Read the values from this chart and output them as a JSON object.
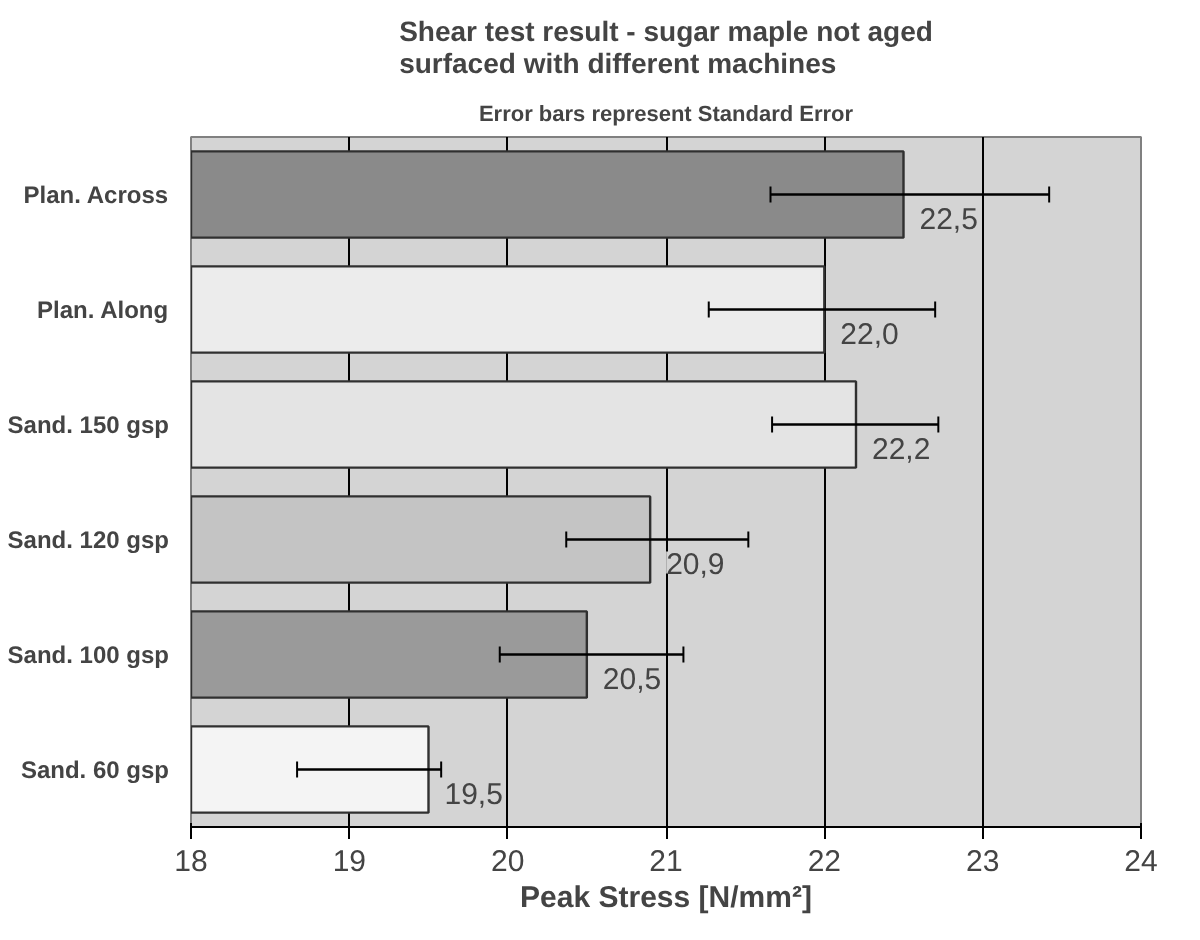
{
  "chart_data": {
    "type": "bar",
    "orientation": "horizontal",
    "title": "Shear test result - sugar maple not aged\nsurfaced with different machines",
    "subtitle": "Error bars represent Standard Error",
    "xlabel": "Peak Stress [N/mm²]",
    "categories": [
      "Plan. Across",
      "Plan. Along",
      "Sand. 150 gsp",
      "Sand. 120 gsp",
      "Sand. 100 gsp",
      "Sand. 60 gsp"
    ],
    "values": [
      22.5,
      22.0,
      22.2,
      20.9,
      20.5,
      19.5
    ],
    "value_labels": [
      "22,5",
      "22,0",
      "22,2",
      "20,9",
      "20,5",
      "19,5"
    ],
    "errors": [
      [
        21.66,
        23.42
      ],
      [
        21.27,
        22.7
      ],
      [
        21.67,
        22.72
      ],
      [
        20.37,
        21.52
      ],
      [
        19.95,
        21.11
      ],
      [
        18.67,
        19.58
      ]
    ],
    "colors": [
      "#8a8a8a",
      "#ececec",
      "#e4e4e4",
      "#c4c4c4",
      "#9a9a9a",
      "#f4f4f4"
    ],
    "xlim": [
      18,
      24
    ],
    "xticks": [
      18,
      19,
      20,
      21,
      22,
      23,
      24
    ],
    "grid": "x"
  }
}
